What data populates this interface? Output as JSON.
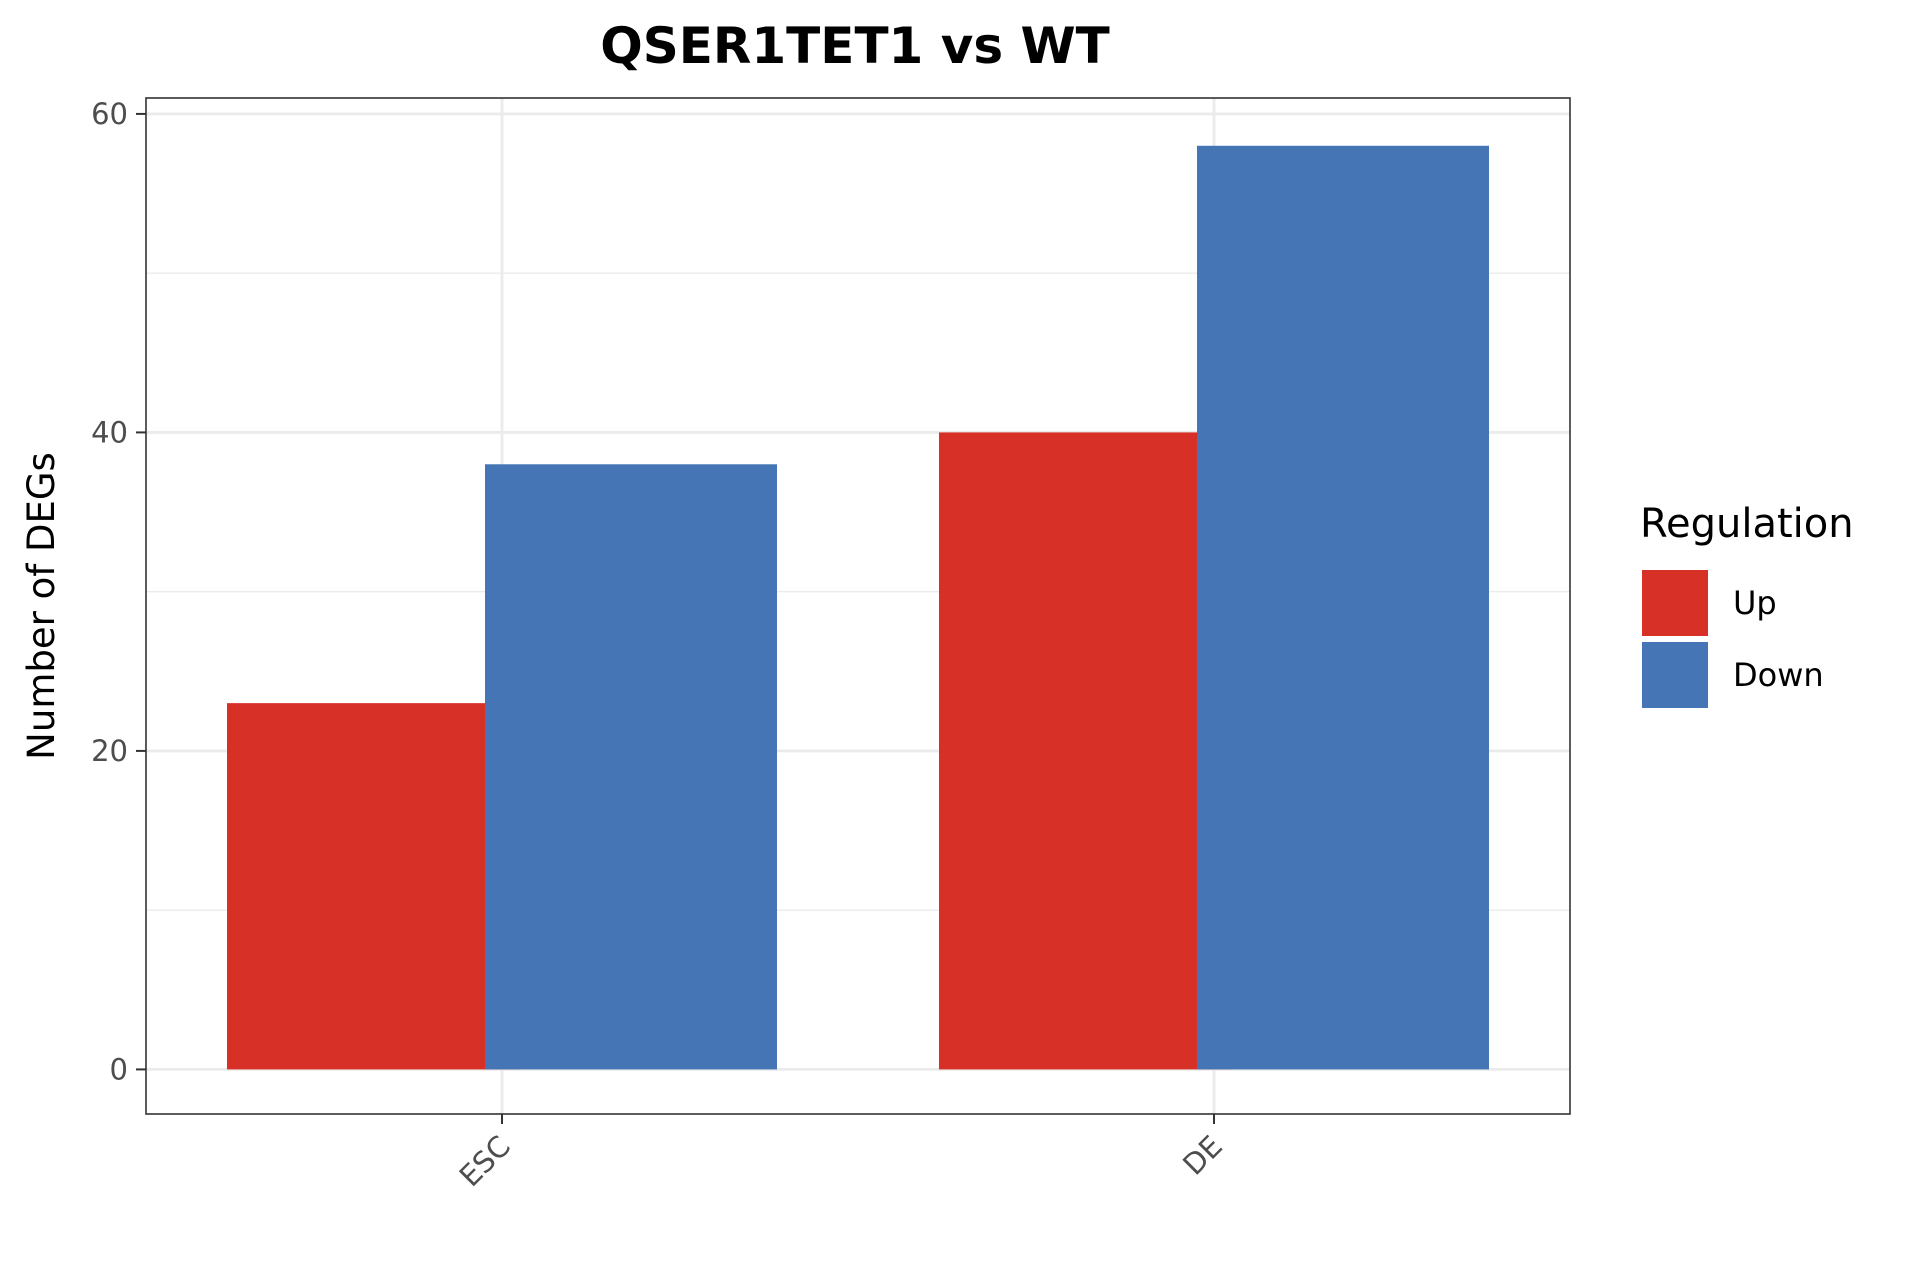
{
  "chart_data": {
    "type": "bar",
    "title": "QSER1TET1 vs WT",
    "xlabel": "",
    "ylabel": "Number of DEGs",
    "categories": [
      "ESC",
      "DE"
    ],
    "series": [
      {
        "name": "Up",
        "color": "#d73027",
        "values": [
          23,
          40
        ]
      },
      {
        "name": "Down",
        "color": "#4575b4",
        "values": [
          38,
          58
        ]
      }
    ],
    "ylim": [
      -2.8,
      61
    ],
    "yticks": [
      0,
      20,
      40,
      60
    ],
    "ytick_labels": [
      "0",
      "20",
      "40",
      "60"
    ],
    "grid": true,
    "legend": {
      "title": "Regulation",
      "placement": "right"
    }
  }
}
